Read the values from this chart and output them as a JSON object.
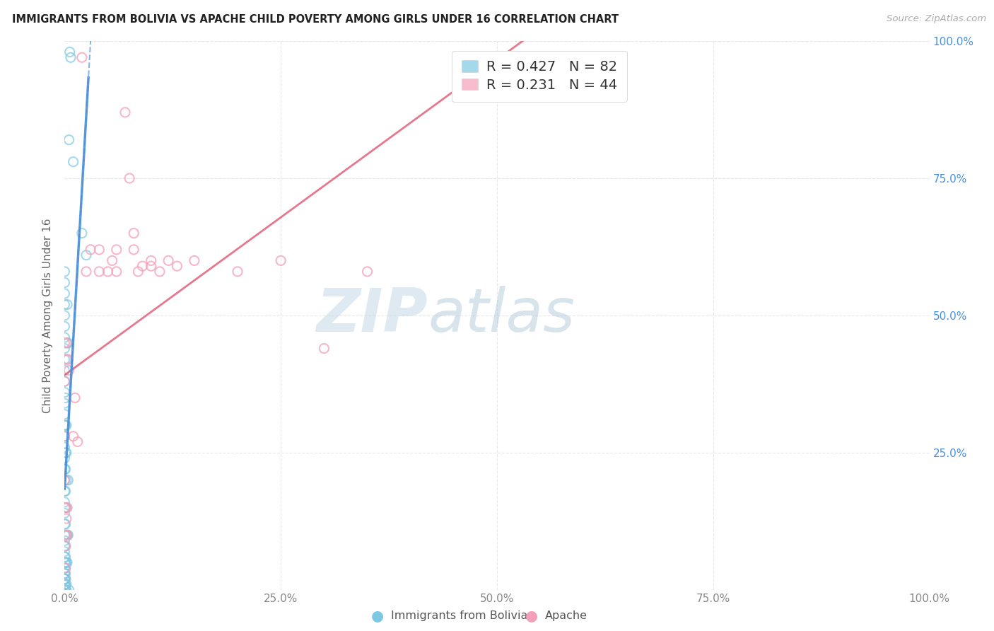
{
  "title": "IMMIGRANTS FROM BOLIVIA VS APACHE CHILD POVERTY AMONG GIRLS UNDER 16 CORRELATION CHART",
  "source": "Source: ZipAtlas.com",
  "xlabel_bolivia": "Immigrants from Bolivia",
  "xlabel_apache": "Apache",
  "ylabel": "Child Poverty Among Girls Under 16",
  "bolivia_R": 0.427,
  "bolivia_N": 82,
  "apache_R": 0.231,
  "apache_N": 44,
  "bolivia_color": "#7ec8e3",
  "apache_color": "#f4a0b8",
  "bolivia_line_color": "#4a90d9",
  "apache_line_color": "#e0607a",
  "bolivia_R_color": "#4a90d9",
  "apache_R_color": "#e0607a",
  "N_color": "#2ecc71",
  "watermark_text": "ZIPatlas",
  "watermark_color": "#c5d8e8",
  "grid_color": "#e8e8e8",
  "title_color": "#222222",
  "source_color": "#aaaaaa",
  "ylabel_color": "#666666",
  "tick_color_right": "#4a90d9",
  "tick_color_x": "#888888",
  "bolivia_x": [
    0.0,
    0.0,
    0.0,
    0.0,
    0.0,
    0.0,
    0.0,
    0.0,
    0.0,
    0.0,
    0.0,
    0.0,
    0.0,
    0.0,
    0.0,
    0.0,
    0.0,
    0.0,
    0.0,
    0.0,
    0.0,
    0.0,
    0.0,
    0.0,
    0.0,
    0.0,
    0.0,
    0.0,
    0.0,
    0.0,
    0.0,
    0.0,
    0.0,
    0.0,
    0.0,
    0.0,
    0.0,
    0.0,
    0.0,
    0.0,
    0.001,
    0.001,
    0.001,
    0.001,
    0.001,
    0.001,
    0.001,
    0.001,
    0.001,
    0.001,
    0.001,
    0.001,
    0.001,
    0.001,
    0.001,
    0.001,
    0.001,
    0.001,
    0.001,
    0.001,
    0.002,
    0.002,
    0.002,
    0.002,
    0.002,
    0.002,
    0.002,
    0.002,
    0.003,
    0.003,
    0.003,
    0.003,
    0.004,
    0.004,
    0.004,
    0.005,
    0.005,
    0.006,
    0.007,
    0.01,
    0.02,
    0.025
  ],
  "bolivia_y": [
    0.0,
    0.01,
    0.02,
    0.03,
    0.04,
    0.05,
    0.06,
    0.07,
    0.08,
    0.09,
    0.1,
    0.12,
    0.14,
    0.16,
    0.18,
    0.2,
    0.22,
    0.24,
    0.26,
    0.28,
    0.3,
    0.32,
    0.34,
    0.36,
    0.38,
    0.4,
    0.42,
    0.44,
    0.46,
    0.48,
    0.5,
    0.52,
    0.54,
    0.56,
    0.58,
    0.0,
    0.01,
    0.02,
    0.03,
    0.04,
    0.0,
    0.01,
    0.02,
    0.05,
    0.08,
    0.1,
    0.12,
    0.15,
    0.18,
    0.22,
    0.25,
    0.3,
    0.35,
    0.0,
    0.01,
    0.02,
    0.03,
    0.04,
    0.05,
    0.06,
    0.05,
    0.1,
    0.15,
    0.2,
    0.25,
    0.3,
    0.0,
    0.01,
    0.05,
    0.1,
    0.45,
    0.52,
    0.1,
    0.2,
    0.45,
    0.82,
    0.0,
    0.98,
    0.97,
    0.78,
    0.65,
    0.61
  ],
  "apache_x": [
    0.0,
    0.0,
    0.0,
    0.0,
    0.0,
    0.001,
    0.001,
    0.001,
    0.001,
    0.002,
    0.002,
    0.002,
    0.003,
    0.003,
    0.004,
    0.005,
    0.01,
    0.012,
    0.015,
    0.02,
    0.025,
    0.03,
    0.04,
    0.04,
    0.05,
    0.055,
    0.06,
    0.06,
    0.07,
    0.075,
    0.08,
    0.08,
    0.085,
    0.09,
    0.1,
    0.1,
    0.11,
    0.12,
    0.13,
    0.15,
    0.2,
    0.25,
    0.3,
    0.35
  ],
  "apache_y": [
    0.45,
    0.38,
    0.28,
    0.2,
    0.15,
    0.15,
    0.1,
    0.08,
    0.04,
    0.42,
    0.45,
    0.13,
    0.1,
    0.15,
    0.42,
    0.4,
    0.28,
    0.35,
    0.27,
    0.97,
    0.58,
    0.62,
    0.58,
    0.62,
    0.58,
    0.6,
    0.58,
    0.62,
    0.87,
    0.75,
    0.65,
    0.62,
    0.58,
    0.59,
    0.6,
    0.59,
    0.58,
    0.6,
    0.59,
    0.6,
    0.58,
    0.6,
    0.44,
    0.58
  ],
  "xlim": [
    0,
    1.0
  ],
  "ylim": [
    0,
    1.0
  ],
  "xticks": [
    0.0,
    0.25,
    0.5,
    0.75,
    1.0
  ],
  "xtick_labels": [
    "0.0%",
    "25.0%",
    "50.0%",
    "75.0%",
    "100.0%"
  ],
  "yticks_right": [
    0.25,
    0.5,
    0.75,
    1.0
  ],
  "ytick_labels_right": [
    "25.0%",
    "50.0%",
    "75.0%",
    "100.0%"
  ]
}
